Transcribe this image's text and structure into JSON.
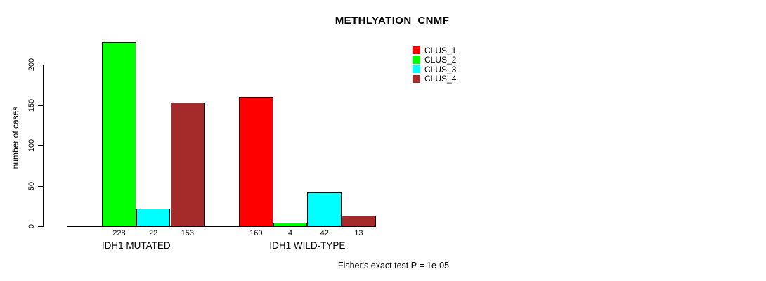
{
  "title": "METHLYATION_CNMF",
  "footer_note": "Fisher's exact test P = 1e-05",
  "y_axis": {
    "label": "number of cases",
    "ticks": [
      0,
      50,
      100,
      150,
      200
    ]
  },
  "legend": {
    "items": [
      {
        "label": "CLUS_1",
        "color": "#FF0000"
      },
      {
        "label": "CLUS_2",
        "color": "#00FF00"
      },
      {
        "label": "CLUS_3",
        "color": "#00FFFF"
      },
      {
        "label": "CLUS_4",
        "color": "#A52A2A"
      }
    ]
  },
  "chart_data": {
    "type": "bar",
    "title": "METHLYATION_CNMF",
    "xlabel": "",
    "ylabel": "number of cases",
    "ylim": [
      0,
      230
    ],
    "grid": false,
    "legend_position": "top-right",
    "categories": [
      "IDH1 MUTATED",
      "IDH1 WILD-TYPE"
    ],
    "series": [
      {
        "name": "CLUS_1",
        "color": "#FF0000",
        "values": [
          0,
          160
        ]
      },
      {
        "name": "CLUS_2",
        "color": "#00FF00",
        "values": [
          228,
          4
        ]
      },
      {
        "name": "CLUS_3",
        "color": "#00FFFF",
        "values": [
          22,
          42
        ]
      },
      {
        "name": "CLUS_4",
        "color": "#A52A2A",
        "values": [
          153,
          13
        ]
      }
    ],
    "bar_value_labels_shown_when": "value > 0",
    "annotation": "Fisher's exact test P = 1e-05"
  }
}
